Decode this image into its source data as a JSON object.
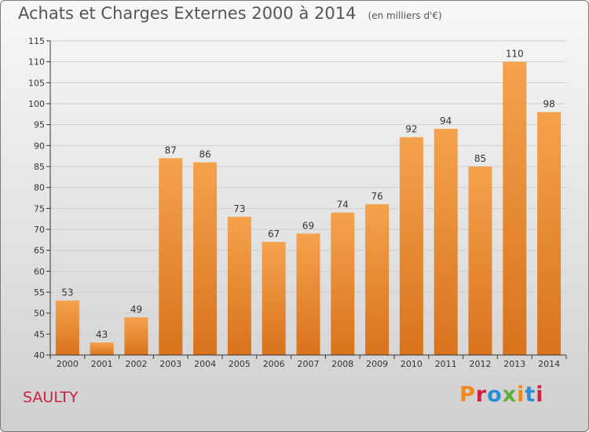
{
  "header": {
    "title": "Achats et Charges Externes 2000 à 2014",
    "unit": "(en milliers d'€)"
  },
  "footer": {
    "town": "SAULTY",
    "logo": "Proxiti",
    "logo_colors": [
      "#f08a1f",
      "#cc2244",
      "#2c8fd6",
      "#5fae3a",
      "#f08a1f",
      "#2c8fd6",
      "#cc2244"
    ]
  },
  "colors": {
    "bar_light": "#f5a24d",
    "bar_dark": "#d9731c",
    "grid": "#cfcfcf",
    "axis": "#333333"
  },
  "chart_data": {
    "type": "bar",
    "title": "Achats et Charges Externes 2000 à 2014",
    "xlabel": "",
    "ylabel": "",
    "categories": [
      "2000",
      "2001",
      "2002",
      "2003",
      "2004",
      "2005",
      "2006",
      "2007",
      "2008",
      "2009",
      "2010",
      "2011",
      "2012",
      "2013",
      "2014"
    ],
    "values": [
      53,
      43,
      49,
      87,
      86,
      73,
      67,
      69,
      74,
      76,
      92,
      94,
      85,
      110,
      98
    ],
    "ylim": [
      40,
      115
    ],
    "yticks": [
      40,
      45,
      50,
      55,
      60,
      65,
      70,
      75,
      80,
      85,
      90,
      95,
      100,
      105,
      110,
      115
    ],
    "grid": true,
    "legend": "none"
  }
}
